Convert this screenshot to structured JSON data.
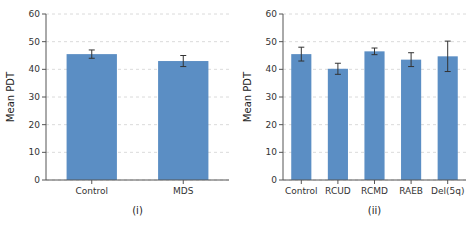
{
  "chart_data": [
    {
      "type": "bar",
      "categories": [
        "Control",
        "MDS"
      ],
      "values": [
        45.5,
        43.0
      ],
      "errors": [
        1.5,
        2.0
      ],
      "ylabel": "Mean PDT",
      "xlabel": "(i)",
      "ylim": [
        0,
        60
      ],
      "yticks": [
        0,
        10,
        20,
        30,
        40,
        50,
        60
      ],
      "color": "#5b8ec4",
      "grid": true
    },
    {
      "type": "bar",
      "categories": [
        "Control",
        "RCUD",
        "RCMD",
        "RAEB",
        "Del(5q)"
      ],
      "values": [
        45.5,
        40.2,
        46.5,
        43.5,
        44.7
      ],
      "errors": [
        2.5,
        2.0,
        1.2,
        2.5,
        5.5
      ],
      "ylabel": "Mean PDT",
      "xlabel": "(ii)",
      "ylim": [
        0,
        60
      ],
      "yticks": [
        0,
        10,
        20,
        30,
        40,
        50,
        60
      ],
      "color": "#5b8ec4",
      "grid": true
    }
  ]
}
